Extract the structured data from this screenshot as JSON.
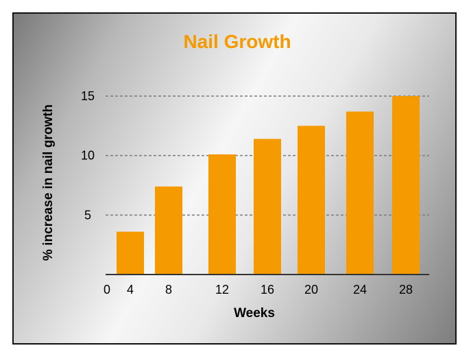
{
  "colors": {
    "bar": "#f59a00",
    "title": "#f59a00",
    "grid": "#7a7a7a",
    "axis": "#333333"
  },
  "chart_data": {
    "type": "bar",
    "title": "Nail Growth",
    "xlabel": "Weeks",
    "ylabel": "% increase in nail growth",
    "origin_label": "0",
    "categories": [
      "4",
      "8",
      "12",
      "16",
      "20",
      "24",
      "28"
    ],
    "values": [
      3.6,
      7.4,
      10.1,
      11.4,
      12.5,
      13.7,
      15.0
    ],
    "ylim": [
      0,
      15
    ],
    "yticks": [
      5,
      10,
      15
    ],
    "grid": true,
    "grid_style": "dashed",
    "legend": false
  }
}
